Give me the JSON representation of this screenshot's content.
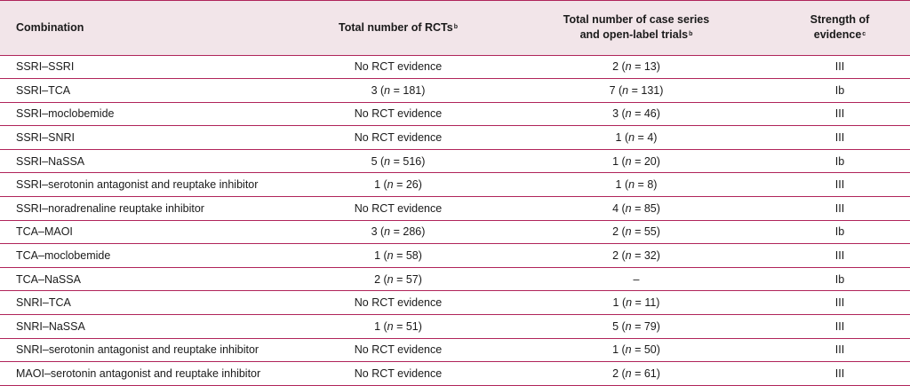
{
  "header": {
    "combination": "Combination",
    "rcts": "Total number of RCTs",
    "rcts_sup": "b",
    "case_line1": "Total number of case series",
    "case_line2": "and open-label trials",
    "case_sup": "b",
    "strength_line1": "Strength of",
    "strength_line2": "evidence",
    "strength_sup": "c"
  },
  "rows": [
    {
      "combination": "SSRI–SSRI",
      "rct": {
        "text": "No RCT evidence"
      },
      "cases": {
        "count": "2",
        "n": "13"
      },
      "strength": "III"
    },
    {
      "combination": "SSRI–TCA",
      "rct": {
        "count": "3",
        "n": "181"
      },
      "cases": {
        "count": "7",
        "n": "131"
      },
      "strength": "Ib"
    },
    {
      "combination": "SSRI–moclobemide",
      "rct": {
        "text": "No RCT evidence"
      },
      "cases": {
        "count": "3",
        "n": "46"
      },
      "strength": "III"
    },
    {
      "combination": "SSRI–SNRI",
      "rct": {
        "text": "No RCT evidence"
      },
      "cases": {
        "count": "1",
        "n": "4"
      },
      "strength": "III"
    },
    {
      "combination": "SSRI–NaSSA",
      "rct": {
        "count": "5",
        "n": "516"
      },
      "cases": {
        "count": "1",
        "n": "20"
      },
      "strength": "Ib"
    },
    {
      "combination": "SSRI–serotonin antagonist and reuptake inhibitor",
      "rct": {
        "count": "1",
        "n": "26"
      },
      "cases": {
        "count": "1",
        "n": "8"
      },
      "strength": "III"
    },
    {
      "combination": "SSRI–noradrenaline reuptake inhibitor",
      "rct": {
        "text": "No RCT evidence"
      },
      "cases": {
        "count": "4",
        "n": "85"
      },
      "strength": "III"
    },
    {
      "combination": "TCA–MAOI",
      "rct": {
        "count": "3",
        "n": "286"
      },
      "cases": {
        "count": "2",
        "n": "55"
      },
      "strength": "Ib"
    },
    {
      "combination": "TCA–moclobemide",
      "rct": {
        "count": "1",
        "n": "58"
      },
      "cases": {
        "count": "2",
        "n": "32"
      },
      "strength": "III"
    },
    {
      "combination": "TCA–NaSSA",
      "rct": {
        "count": "2",
        "n": "57"
      },
      "cases": {
        "text": "–"
      },
      "strength": "Ib"
    },
    {
      "combination": "SNRI–TCA",
      "rct": {
        "text": "No RCT evidence"
      },
      "cases": {
        "count": "1",
        "n": "11"
      },
      "strength": "III"
    },
    {
      "combination": "SNRI–NaSSA",
      "rct": {
        "count": "1",
        "n": "51"
      },
      "cases": {
        "count": "5",
        "n": "79"
      },
      "strength": "III"
    },
    {
      "combination": "SNRI–serotonin antagonist and reuptake inhibitor",
      "rct": {
        "text": "No RCT evidence"
      },
      "cases": {
        "count": "1",
        "n": "50"
      },
      "strength": "III"
    },
    {
      "combination": "MAOI–serotonin antagonist and reuptake inhibitor",
      "rct": {
        "text": "No RCT evidence"
      },
      "cases": {
        "count": "2",
        "n": "61"
      },
      "strength": "III"
    }
  ]
}
